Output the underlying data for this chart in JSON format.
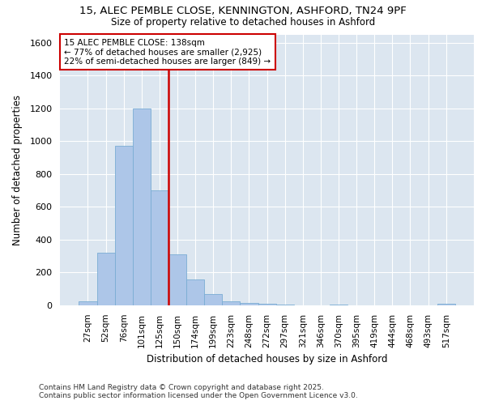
{
  "title_line1": "15, ALEC PEMBLE CLOSE, KENNINGTON, ASHFORD, TN24 9PF",
  "title_line2": "Size of property relative to detached houses in Ashford",
  "xlabel": "Distribution of detached houses by size in Ashford",
  "ylabel": "Number of detached properties",
  "categories": [
    "27sqm",
    "52sqm",
    "76sqm",
    "101sqm",
    "125sqm",
    "150sqm",
    "174sqm",
    "199sqm",
    "223sqm",
    "248sqm",
    "272sqm",
    "297sqm",
    "321sqm",
    "346sqm",
    "370sqm",
    "395sqm",
    "419sqm",
    "444sqm",
    "468sqm",
    "493sqm",
    "517sqm"
  ],
  "values": [
    25,
    320,
    970,
    1200,
    700,
    310,
    155,
    70,
    25,
    15,
    10,
    5,
    0,
    0,
    5,
    0,
    0,
    0,
    0,
    0,
    10
  ],
  "bar_color": "#adc6e8",
  "bar_edge_color": "#7aadd4",
  "vline_color": "#cc0000",
  "vline_x": 4.5,
  "annotation_title": "15 ALEC PEMBLE CLOSE: 138sqm",
  "annotation_line1": "← 77% of detached houses are smaller (2,925)",
  "annotation_line2": "22% of semi-detached houses are larger (849) →",
  "annotation_box_edgecolor": "#cc0000",
  "ylim": [
    0,
    1650
  ],
  "yticks": [
    0,
    200,
    400,
    600,
    800,
    1000,
    1200,
    1400,
    1600
  ],
  "fig_facecolor": "#ffffff",
  "ax_facecolor": "#dce6f0",
  "grid_color": "#ffffff",
  "footnote1": "Contains HM Land Registry data © Crown copyright and database right 2025.",
  "footnote2": "Contains public sector information licensed under the Open Government Licence v3.0."
}
